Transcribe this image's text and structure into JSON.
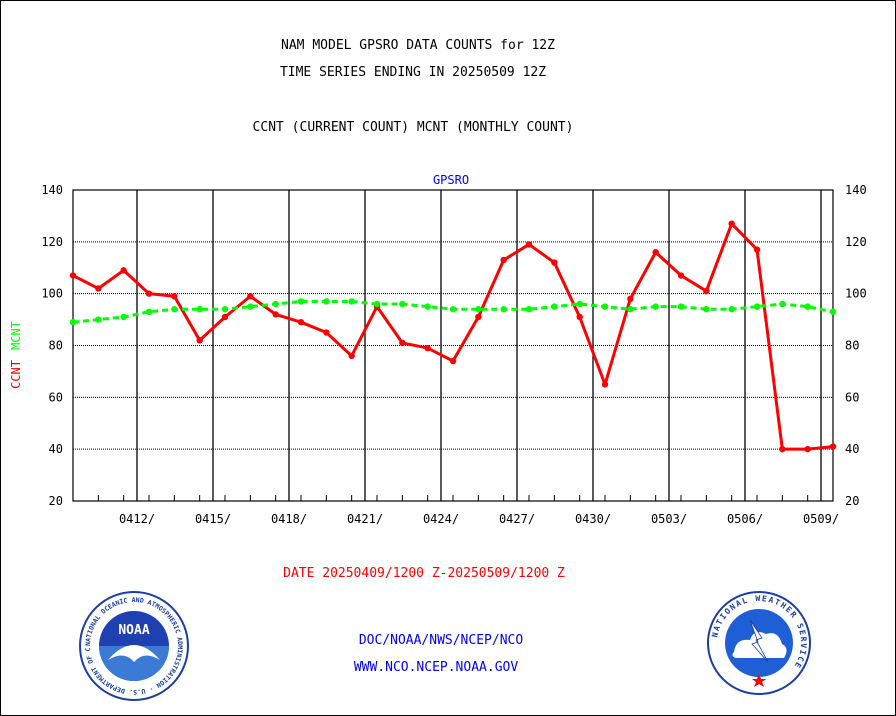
{
  "header": {
    "title1": "NAM MODEL GPSRO DATA COUNTS for 12Z",
    "title2": "TIME SERIES ENDING IN 20250509 12Z",
    "subtitle": "CCNT (CURRENT COUNT) MCNT (MONTHLY COUNT)"
  },
  "chart_data": {
    "type": "line",
    "title": "GPSRO",
    "ylabel": "CCNT  MCNT",
    "xlabel": "DATE 20250409/1200 Z-20250509/1200 Z",
    "ylim": [
      20,
      140
    ],
    "y_ticks": [
      20,
      40,
      60,
      80,
      100,
      120,
      140
    ],
    "x_tick_labels": [
      "0412/",
      "0415/",
      "0418/",
      "0421/",
      "0424/",
      "0427/",
      "0430/",
      "0503/",
      "0506/",
      "0509/"
    ],
    "x": [
      "0409",
      "0410",
      "0411",
      "0412",
      "0413",
      "0414",
      "0415",
      "0416",
      "0417",
      "0418",
      "0419",
      "0420",
      "0421",
      "0422",
      "0423",
      "0424",
      "0425",
      "0426",
      "0427",
      "0428",
      "0429",
      "0430",
      "0501",
      "0502",
      "0503",
      "0504",
      "0505",
      "0506",
      "0507",
      "0508",
      "0509"
    ],
    "series": [
      {
        "name": "CCNT",
        "color": "#ff0000",
        "values": [
          107,
          102,
          109,
          100,
          99,
          82,
          91,
          99,
          92,
          89,
          85,
          76,
          95,
          81,
          79,
          74,
          91,
          113,
          119,
          112,
          91,
          65,
          98,
          116,
          107,
          101,
          127,
          117,
          40,
          40,
          41
        ]
      },
      {
        "name": "MCNT",
        "color": "#00ff00",
        "values": [
          89,
          90,
          91,
          93,
          94,
          94,
          94,
          95,
          96,
          97,
          97,
          97,
          96,
          96,
          95,
          94,
          94,
          94,
          94,
          95,
          96,
          95,
          94,
          95,
          95,
          94,
          94,
          95,
          96,
          95,
          93
        ]
      }
    ],
    "grid": true
  },
  "footer": {
    "line1": "DOC/NOAA/NWS/NCEP/NCO",
    "line2": "WWW.NCO.NCEP.NOAA.GOV",
    "noaa_text": "NOAA",
    "noaa_ring_text": "NATIONAL OCEANIC AND ATMOSPHERIC ADMINISTRATION · U.S. DEPARTMENT OF COMMERCE",
    "nws_ring_text": "NATIONAL WEATHER SERVICE"
  },
  "colors": {
    "ccnt": "#ff0000",
    "mcnt": "#00ff00",
    "blue": "#0000ff",
    "date_red": "#ff0000"
  }
}
